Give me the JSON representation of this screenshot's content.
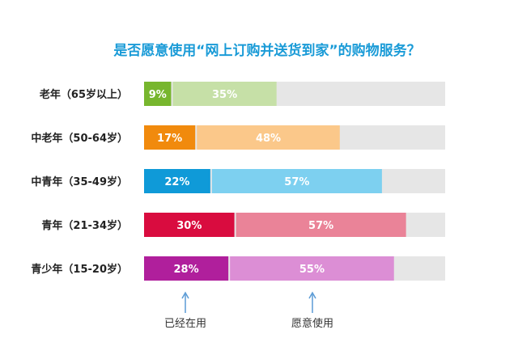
{
  "chart_data": {
    "type": "bar",
    "title": "是否愿意使用“网上订购并送货到家”的购物服务？",
    "categories": [
      "老年（65岁以上）",
      "中老年（50-64岁）",
      "中青年（35-49岁）",
      "青年（21-34岁）",
      "青少年（15-20岁）"
    ],
    "series": [
      {
        "name": "已经在用",
        "values": [
          9,
          17,
          22,
          30,
          28
        ],
        "labels": [
          "9%",
          "17%",
          "22%",
          "30%",
          "28%"
        ]
      },
      {
        "name": "愿意使用",
        "values": [
          35,
          48,
          57,
          57,
          55
        ],
        "labels": [
          "35%",
          "48%",
          "57%",
          "57%",
          "55%"
        ]
      }
    ],
    "xlim": [
      0,
      100
    ],
    "stacked": true,
    "grid": false,
    "legend_placement": "bottom",
    "annotations": [
      "已经在用",
      "愿意使用"
    ],
    "colors": {
      "title": "#1a9bd7",
      "track": "#e6e6e6",
      "arrow": "#5b9bd5",
      "rows": [
        {
          "used": "#77b62e",
          "willing": "#c6e0a7"
        },
        {
          "used": "#f18a0d",
          "willing": "#fbc88a"
        },
        {
          "used": "#0f9ad8",
          "willing": "#7dd0f0"
        },
        {
          "used": "#d90c3f",
          "willing": "#ea8398"
        },
        {
          "used": "#b01f9c",
          "willing": "#dc8ed5"
        }
      ]
    }
  }
}
